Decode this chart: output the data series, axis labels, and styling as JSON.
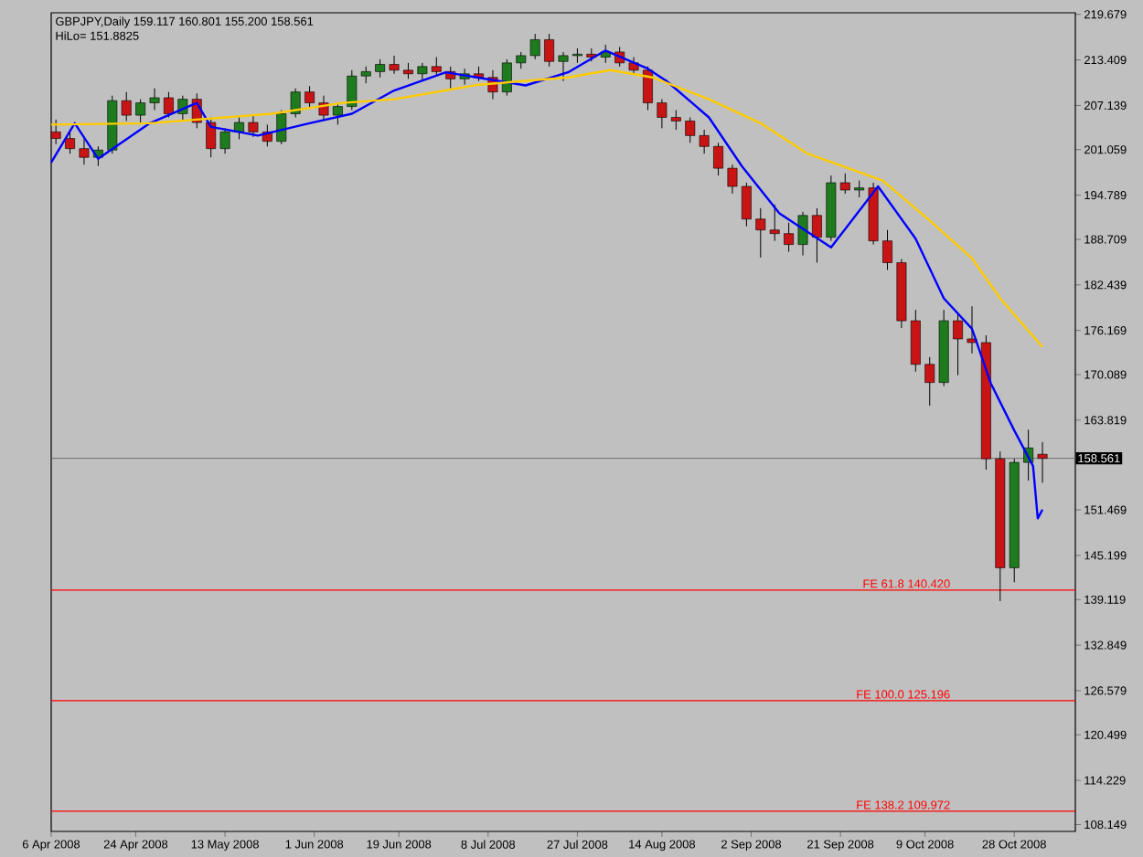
{
  "chart_data": {
    "type": "candlestick",
    "title": "GBPJPY,Daily 159.117 160.801 155.200 158.561",
    "subtitle": "HiLo= 151.8825",
    "x": [
      "2008-04-07",
      "2008-04-10",
      "2008-04-13",
      "2008-04-16",
      "2008-04-19",
      "2008-04-22",
      "2008-04-25",
      "2008-04-28",
      "2008-05-01",
      "2008-05-04",
      "2008-05-07",
      "2008-05-10",
      "2008-05-13",
      "2008-05-16",
      "2008-05-19",
      "2008-05-22",
      "2008-05-25",
      "2008-05-28",
      "2008-05-31",
      "2008-06-03",
      "2008-06-06",
      "2008-06-09",
      "2008-06-12",
      "2008-06-15",
      "2008-06-18",
      "2008-06-21",
      "2008-06-24",
      "2008-06-27",
      "2008-06-30",
      "2008-07-03",
      "2008-07-06",
      "2008-07-09",
      "2008-07-12",
      "2008-07-15",
      "2008-07-18",
      "2008-07-21",
      "2008-07-24",
      "2008-07-27",
      "2008-07-30",
      "2008-08-02",
      "2008-08-05",
      "2008-08-08",
      "2008-08-11",
      "2008-08-14",
      "2008-08-17",
      "2008-08-20",
      "2008-08-23",
      "2008-08-26",
      "2008-08-29",
      "2008-09-01",
      "2008-09-04",
      "2008-09-07",
      "2008-09-10",
      "2008-09-13",
      "2008-09-16",
      "2008-09-19",
      "2008-09-22",
      "2008-09-25",
      "2008-09-28",
      "2008-10-01",
      "2008-10-04",
      "2008-10-07",
      "2008-10-10",
      "2008-10-13",
      "2008-10-16",
      "2008-10-19",
      "2008-10-22",
      "2008-10-25",
      "2008-10-28",
      "2008-10-31",
      "2008-11-03"
    ],
    "ohlc": [
      [
        203.5,
        205.2,
        201.8,
        202.6
      ],
      [
        202.6,
        203.8,
        200.5,
        201.2
      ],
      [
        201.2,
        202.5,
        199.0,
        200.0
      ],
      [
        200.0,
        201.5,
        198.8,
        201.0
      ],
      [
        201.0,
        208.5,
        200.5,
        207.8
      ],
      [
        207.8,
        209.0,
        205.0,
        205.8
      ],
      [
        205.8,
        208.0,
        204.8,
        207.5
      ],
      [
        207.5,
        209.5,
        206.5,
        208.2
      ],
      [
        208.2,
        209.0,
        205.5,
        206.0
      ],
      [
        206.0,
        208.5,
        205.0,
        208.0
      ],
      [
        208.0,
        208.8,
        204.0,
        204.8
      ],
      [
        204.8,
        205.5,
        200.0,
        201.2
      ],
      [
        201.2,
        204.0,
        200.5,
        203.5
      ],
      [
        203.5,
        205.5,
        202.5,
        204.8
      ],
      [
        204.8,
        205.8,
        202.8,
        203.5
      ],
      [
        203.5,
        204.5,
        201.5,
        202.2
      ],
      [
        202.2,
        206.5,
        201.8,
        206.0
      ],
      [
        206.0,
        209.5,
        205.5,
        209.0
      ],
      [
        209.0,
        209.8,
        206.8,
        207.5
      ],
      [
        207.5,
        208.5,
        205.0,
        205.8
      ],
      [
        205.8,
        207.5,
        204.5,
        207.0
      ],
      [
        207.0,
        212.0,
        206.5,
        211.2
      ],
      [
        211.2,
        212.5,
        210.2,
        211.8
      ],
      [
        211.8,
        213.5,
        211.0,
        212.8
      ],
      [
        212.8,
        214.0,
        211.5,
        212.0
      ],
      [
        212.0,
        213.0,
        210.8,
        211.5
      ],
      [
        211.5,
        213.0,
        210.5,
        212.5
      ],
      [
        212.5,
        213.8,
        211.2,
        211.8
      ],
      [
        211.8,
        212.5,
        209.5,
        210.8
      ],
      [
        210.8,
        212.2,
        210.0,
        211.5
      ],
      [
        211.5,
        212.5,
        210.5,
        211.0
      ],
      [
        211.0,
        212.0,
        208.0,
        209.0
      ],
      [
        209.0,
        213.5,
        208.5,
        213.0
      ],
      [
        213.0,
        214.5,
        212.2,
        214.0
      ],
      [
        214.0,
        217.0,
        213.5,
        216.2
      ],
      [
        216.2,
        217.0,
        212.5,
        213.2
      ],
      [
        213.2,
        214.5,
        210.5,
        214.0
      ],
      [
        214.0,
        215.0,
        213.0,
        214.2
      ],
      [
        214.2,
        215.0,
        213.2,
        213.8
      ],
      [
        213.8,
        215.5,
        213.0,
        214.5
      ],
      [
        214.5,
        215.2,
        212.5,
        213.0
      ],
      [
        213.0,
        213.8,
        211.5,
        212.0
      ],
      [
        212.0,
        212.5,
        206.5,
        207.5
      ],
      [
        207.5,
        208.0,
        204.0,
        205.5
      ],
      [
        205.5,
        206.5,
        203.8,
        205.0
      ],
      [
        205.0,
        205.5,
        202.0,
        203.0
      ],
      [
        203.0,
        203.8,
        200.5,
        201.5
      ],
      [
        201.5,
        202.0,
        197.5,
        198.5
      ],
      [
        198.5,
        199.0,
        195.0,
        196.0
      ],
      [
        196.0,
        196.5,
        190.5,
        191.5
      ],
      [
        191.5,
        193.0,
        186.2,
        190.0
      ],
      [
        190.0,
        193.5,
        188.5,
        189.5
      ],
      [
        189.5,
        191.0,
        187.0,
        188.0
      ],
      [
        188.0,
        192.5,
        186.5,
        192.0
      ],
      [
        192.0,
        193.0,
        185.5,
        189.0
      ],
      [
        189.0,
        197.5,
        188.5,
        196.5
      ],
      [
        196.5,
        197.8,
        195.0,
        195.5
      ],
      [
        195.5,
        196.8,
        194.5,
        195.8
      ],
      [
        195.8,
        196.5,
        188.0,
        188.5
      ],
      [
        188.5,
        190.0,
        184.5,
        185.5
      ],
      [
        185.5,
        186.0,
        176.5,
        177.5
      ],
      [
        177.5,
        179.0,
        170.5,
        171.5
      ],
      [
        171.5,
        172.5,
        165.8,
        169.0
      ],
      [
        169.0,
        179.0,
        168.5,
        177.5
      ],
      [
        177.5,
        178.5,
        170.0,
        175.0
      ],
      [
        175.0,
        179.5,
        173.0,
        174.5
      ],
      [
        174.5,
        175.5,
        157.0,
        158.5
      ],
      [
        158.5,
        159.5,
        138.9,
        143.5
      ],
      [
        143.5,
        158.5,
        141.5,
        158.0
      ],
      [
        158.0,
        162.5,
        155.5,
        160.0
      ],
      [
        159.117,
        160.801,
        155.2,
        158.561
      ]
    ],
    "colors": [
      "#c81414",
      "#c81414",
      "#c81414",
      "#1e7b1e",
      "#1e7b1e",
      "#c81414",
      "#1e7b1e",
      "#1e7b1e",
      "#c81414",
      "#1e7b1e",
      "#c81414",
      "#c81414",
      "#1e7b1e",
      "#1e7b1e",
      "#c81414",
      "#c81414",
      "#1e7b1e",
      "#1e7b1e",
      "#c81414",
      "#c81414",
      "#1e7b1e",
      "#1e7b1e",
      "#1e7b1e",
      "#1e7b1e",
      "#c81414",
      "#c81414",
      "#1e7b1e",
      "#c81414",
      "#c81414",
      "#1e7b1e",
      "#c81414",
      "#c81414",
      "#1e7b1e",
      "#1e7b1e",
      "#1e7b1e",
      "#c81414",
      "#1e7b1e",
      "#1e7b1e",
      "#c81414",
      "#1e7b1e",
      "#c81414",
      "#c81414",
      "#c81414",
      "#c81414",
      "#c81414",
      "#c81414",
      "#c81414",
      "#c81414",
      "#c81414",
      "#c81414",
      "#c81414",
      "#c81414",
      "#c81414",
      "#1e7b1e",
      "#c81414",
      "#1e7b1e",
      "#c81414",
      "#1e7b1e",
      "#c81414",
      "#c81414",
      "#c81414",
      "#c81414",
      "#c81414",
      "#1e7b1e",
      "#c81414",
      "#c81414",
      "#c81414",
      "#c81414",
      "#1e7b1e",
      "#1e7b1e",
      "#c81414"
    ],
    "series": [
      {
        "type": "line",
        "color": "#0000ff",
        "x": [
          "2008-04-06",
          "2008-04-11",
          "2008-04-16",
          "2008-04-27",
          "2008-05-07",
          "2008-05-10",
          "2008-05-20",
          "2008-05-31",
          "2008-06-09",
          "2008-06-18",
          "2008-06-29",
          "2008-07-16",
          "2008-07-25",
          "2008-08-02",
          "2008-08-11",
          "2008-08-15",
          "2008-08-24",
          "2008-08-31",
          "2008-09-08",
          "2008-09-19",
          "2008-09-29",
          "2008-10-07",
          "2008-10-13",
          "2008-10-19",
          "2008-10-23",
          "2008-10-28",
          "2008-11-01",
          "2008-11-02",
          "2008-11-03"
        ],
        "values": [
          199.3,
          204.7,
          199.8,
          204.7,
          207.5,
          204.2,
          203.0,
          204.7,
          206.0,
          209.2,
          211.7,
          209.9,
          211.7,
          214.7,
          212.2,
          210.5,
          205.5,
          198.8,
          192.3,
          187.6,
          196.0,
          188.8,
          180.6,
          176.4,
          168.9,
          162.4,
          157.5,
          150.3,
          151.5
        ]
      },
      {
        "type": "line",
        "color": "#ffcc00",
        "x": [
          "2008-04-06",
          "2008-04-27",
          "2008-05-23",
          "2008-06-07",
          "2008-06-18",
          "2008-07-06",
          "2008-07-25",
          "2008-08-03",
          "2008-08-12",
          "2008-08-24",
          "2008-09-04",
          "2008-09-14",
          "2008-09-30",
          "2008-10-10",
          "2008-10-19",
          "2008-10-25",
          "2008-11-03"
        ],
        "values": [
          204.5,
          204.7,
          206.0,
          207.5,
          208.0,
          210.0,
          211.0,
          212.0,
          211.0,
          208.0,
          204.7,
          200.5,
          196.8,
          191.3,
          186.1,
          180.6,
          173.9
        ]
      }
    ],
    "ref_lines": [
      {
        "axis": "y",
        "value": 158.561,
        "label": "158.561"
      },
      {
        "axis": "y",
        "value": 140.42,
        "label": "FE 61.8 140.420",
        "color": "#ff0000"
      },
      {
        "axis": "y",
        "value": 125.196,
        "label": "FE 100.0 125.196",
        "color": "#ff0000"
      },
      {
        "axis": "y",
        "value": 109.972,
        "label": "FE 138.2 109.972",
        "color": "#ff0000"
      }
    ],
    "xlim": [
      "2008-04-06",
      "2008-11-10"
    ],
    "xticks": [
      {
        "value": "2008-04-06",
        "label": "6 Apr 2008"
      },
      {
        "value": "2008-04-24",
        "label": "24 Apr 2008"
      },
      {
        "value": "2008-05-13",
        "label": "13 May 2008"
      },
      {
        "value": "2008-06-01",
        "label": "1 Jun 2008"
      },
      {
        "value": "2008-06-19",
        "label": "19 Jun 2008"
      },
      {
        "value": "2008-07-08",
        "label": "8 Jul 2008"
      },
      {
        "value": "2008-07-27",
        "label": "27 Jul 2008"
      },
      {
        "value": "2008-08-14",
        "label": "14 Aug 2008"
      },
      {
        "value": "2008-09-02",
        "label": "2 Sep 2008"
      },
      {
        "value": "2008-09-21",
        "label": "21 Sep 2008"
      },
      {
        "value": "2008-10-09",
        "label": "9 Oct 2008"
      },
      {
        "value": "2008-10-28",
        "label": "28 Oct 2008"
      }
    ],
    "ylim": [
      107.2,
      219.9
    ],
    "yticks": [
      108.149,
      114.229,
      120.499,
      126.579,
      132.849,
      139.119,
      145.199,
      151.469,
      163.819,
      170.089,
      176.169,
      182.439,
      188.709,
      194.789,
      201.059,
      207.139,
      213.409,
      219.679
    ]
  }
}
